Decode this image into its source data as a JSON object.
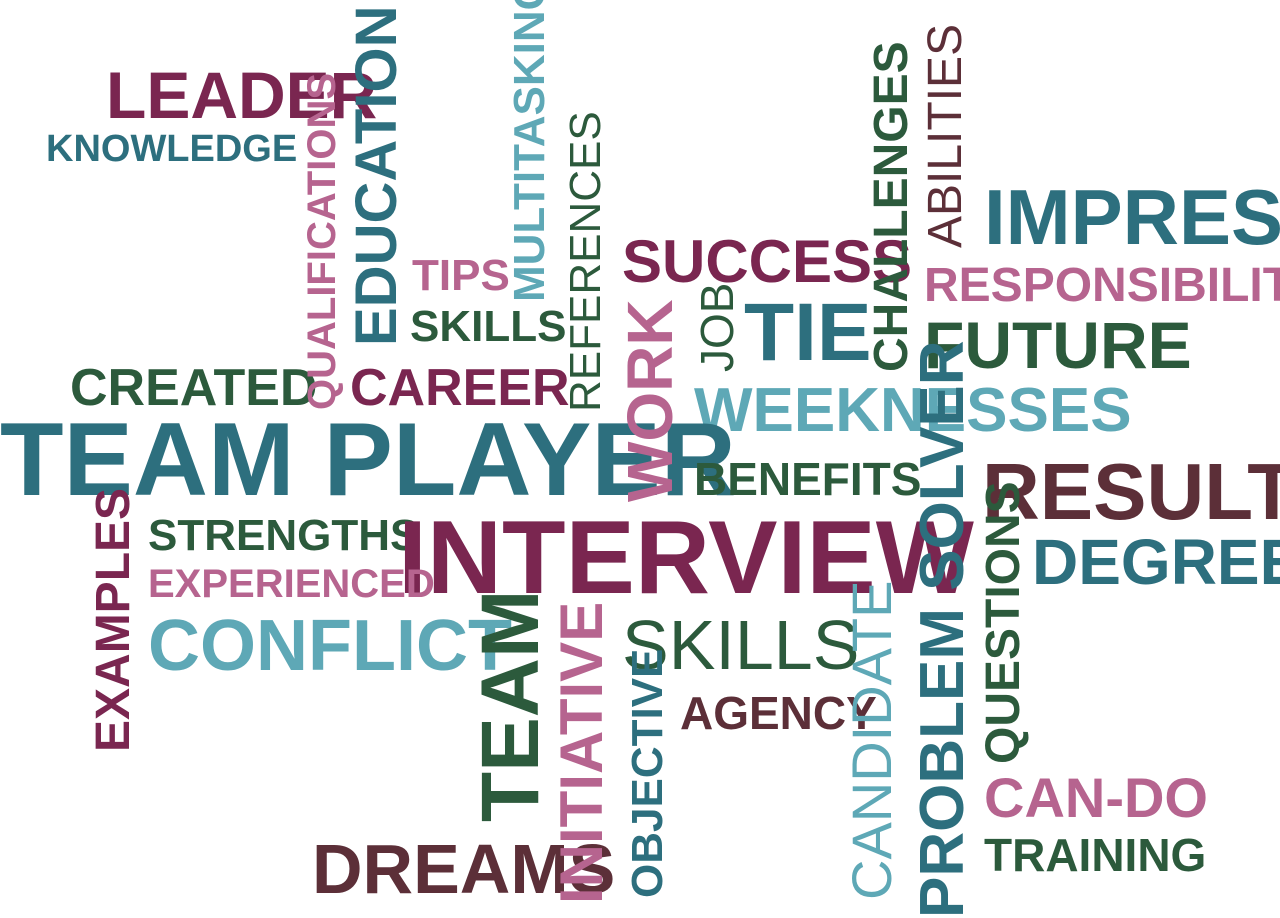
{
  "colors": {
    "plum": "#7a2650",
    "teal": "#2d6f7e",
    "pink": "#b6648f",
    "light_teal": "#5ea8b6",
    "green": "#2c5a3c",
    "brown": "#5c2f38"
  },
  "words": {
    "leader": "LEADER",
    "knowledge": "KNOWLEDGE",
    "qualifications": "QUALIFICATIONS",
    "education": "EDUCATION",
    "multitasking": "MULTITASKING",
    "references": "REFERENCES",
    "tips": "TIPS",
    "skills_small": "SKILLS",
    "success": "SUCCESS",
    "challenges": "CHALLENGES",
    "abilities": "ABILITIES",
    "impress": "IMPRESS",
    "responsibility": "RESPONSIBILITY",
    "job": "JOB",
    "tie": "TIE",
    "future": "FUTURE",
    "work": "WORK",
    "created": "CREATED",
    "career": "CAREER",
    "weeknesses": "WEEKNESSES",
    "team_player": "TEAM PLAYER",
    "benefits": "BENEFITS",
    "results": "RESULTS",
    "examples": "EXAMPLES",
    "strengths": "STRENGTHS",
    "interview": "INTERVIEW",
    "problem_solver": "PROBLEM SOLVER",
    "questions": "QUESTIONS",
    "degree": "DEGREE",
    "experienced": "EXPERIENCED",
    "conflict": "CONFLICT",
    "team": "TEAM",
    "initiative": "INITIATIVE",
    "skills_large": "SKILLS",
    "candidate": "CANDIDATE",
    "objective": "OBJECTIVE",
    "agency": "AGENCY",
    "can_do": "CAN-DO",
    "training": "TRAINING",
    "dreams": "DREAMS"
  }
}
